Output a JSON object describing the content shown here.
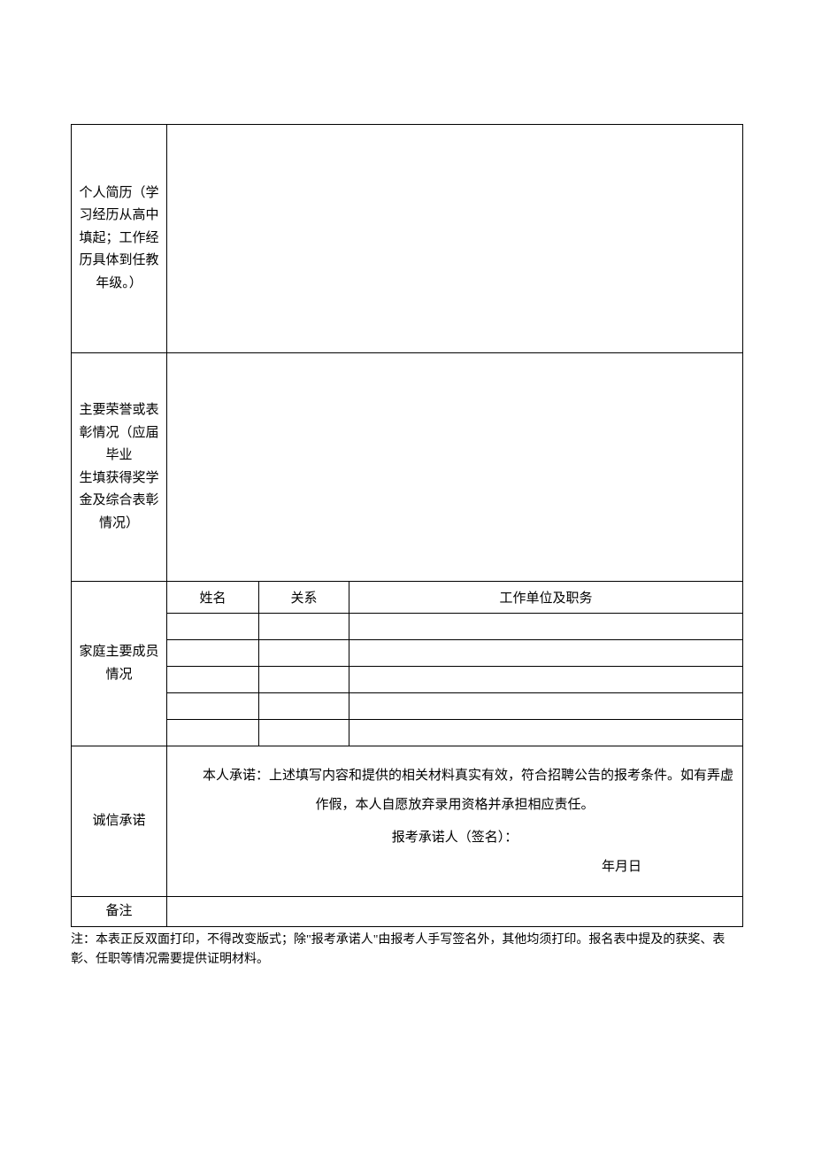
{
  "rows": {
    "resume": {
      "label": "个人简历（学习经历从高中填起；工作经历具体到任教年级。）",
      "value": ""
    },
    "honor": {
      "label": "主要荣誉或表彰情况（应届毕业\n生填获得奖学金及综合表彰情况）",
      "value": ""
    },
    "family": {
      "label": "家庭主要成员情况",
      "headers": {
        "name": "姓名",
        "relation": "关系",
        "workplace": "工作单位及职务"
      },
      "members": [
        {
          "name": "",
          "relation": "",
          "workplace": ""
        },
        {
          "name": "",
          "relation": "",
          "workplace": ""
        },
        {
          "name": "",
          "relation": "",
          "workplace": ""
        },
        {
          "name": "",
          "relation": "",
          "workplace": ""
        },
        {
          "name": "",
          "relation": "",
          "workplace": ""
        }
      ]
    },
    "commitment": {
      "label": "诚信承诺",
      "text": "本人承诺：上述填写内容和提供的相关材料真实有效，符合招聘公告的报考条件。如有弄虚作假，本人自愿放弃录用资格并承担相应责任。",
      "signLabel": "报考承诺人（签名）：",
      "dateLabel": "年月日"
    },
    "remark": {
      "label": "备注",
      "value": ""
    }
  },
  "footnote": "注：本表正反双面打印，不得改变版式；除\"报考承诺人\"由报考人手写签名外，其他均须打印。报名表中提及的获奖、表彰、任职等情况需要提供证明材料。"
}
